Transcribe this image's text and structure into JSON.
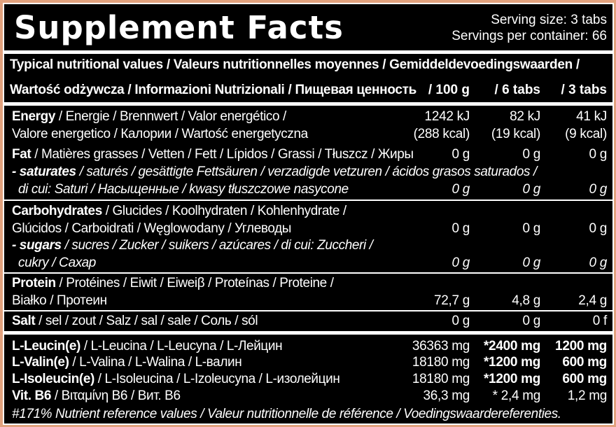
{
  "header": {
    "title": "Supplement Facts",
    "serving_size": "Serving size: 3 tabs",
    "servings_per_container": "Servings per container: 66"
  },
  "caption": {
    "line1": "Typical nutritional values / Valeurs nutritionnelles moyennes / Gemiddeldevoedingswaarden /",
    "line2": "Wartość odżywcza / Informazioni Nutrizionali / Пищевая ценность",
    "col1": "/ 100 g",
    "col2": "/ 6 tabs",
    "col3": "/ 3 tabs"
  },
  "nutrients": {
    "energy": {
      "name": "Energy",
      "rest1": " / Energie / Brennwert / Valor energético /",
      "line2": "Valore energetico / Калории / Wartość energetyczna",
      "v100": "1242 kJ",
      "v6": "82 kJ",
      "v3": "41 kJ",
      "v100b": "(288 kcal)",
      "v6b": "(19 kcal)",
      "v3b": "(9 kcal)"
    },
    "fat": {
      "name": "Fat",
      "rest": " / Matières grasses / Vetten / Fett / Lípidos / Grassi / Tłuszcz / Жиры",
      "v100": "0 g",
      "v6": "0 g",
      "v3": "0 g"
    },
    "saturates": {
      "name": "- saturates",
      "rest": " / saturés / gesättigte Fettsäuren / verzadigde vetzuren / ácidos grasos saturados /",
      "line2": "di cui: Saturi / Насыщенные / kwasy tłuszczowe nasycone",
      "v100": "0 g",
      "v6": "0 g",
      "v3": "0 g"
    },
    "carbs": {
      "name": "Carbohydrates",
      "rest": " / Glucides / Koolhydraten / Kohlenhydrate /",
      "line2": "Glúcidos / Carboidrati / Węglowodany / Углеводы",
      "v100": "0 g",
      "v6": "0 g",
      "v3": "0 g"
    },
    "sugars": {
      "name": "- sugars",
      "rest": " / sucres / Zucker / suikers / azúcares / di cui: Zuccheri /",
      "line2": "cukry / Сахар",
      "v100": "0 g",
      "v6": "0 g",
      "v3": "0 g"
    },
    "protein": {
      "name": "Protein",
      "rest": " / Protéines / Eiwit / Eiweiβ / Proteínas / Proteine /",
      "line2": "Białko / Протеин",
      "v100": "72,7 g",
      "v6": "4,8 g",
      "v3": "2,4 g"
    },
    "salt": {
      "name": "Salt",
      "rest": " / sel / zout / Salz / sal / sale / Соль / sól",
      "v100": "0 g",
      "v6": "0 g",
      "v3": "0 f"
    }
  },
  "aminos": {
    "leucine": {
      "name": "L-Leucin(e)",
      "rest": " / L-Leucina / L-Leucyna / L-Лейцин",
      "v100": "36363 mg",
      "v6": "*2400 mg",
      "v3": "1200 mg"
    },
    "valine": {
      "name": "L-Valin(e)",
      "rest": " / L-Valina / L-Walina / L-валин",
      "v100": "18180 mg",
      "v6": "*1200 mg",
      "v3": "600 mg"
    },
    "isoleucine": {
      "name": "L-Isoleucin(e)",
      "rest": " / L-Isoleucina / L-Izoleucyna / L-изолейцин",
      "v100": "18180 mg",
      "v6": "*1200 mg",
      "v3": "600 mg"
    },
    "b6": {
      "name": "Vit. B6",
      "rest": " / Βιταμίνη Β6 / Вит. В6",
      "v100": "36,3 mg",
      "v6": "* 2,4 mg",
      "v3": "1,2 mg"
    }
  },
  "footnote": "#171% Nutrient reference values / Valeur nutritionnelle de référence / Voedingswaardereferenties."
}
